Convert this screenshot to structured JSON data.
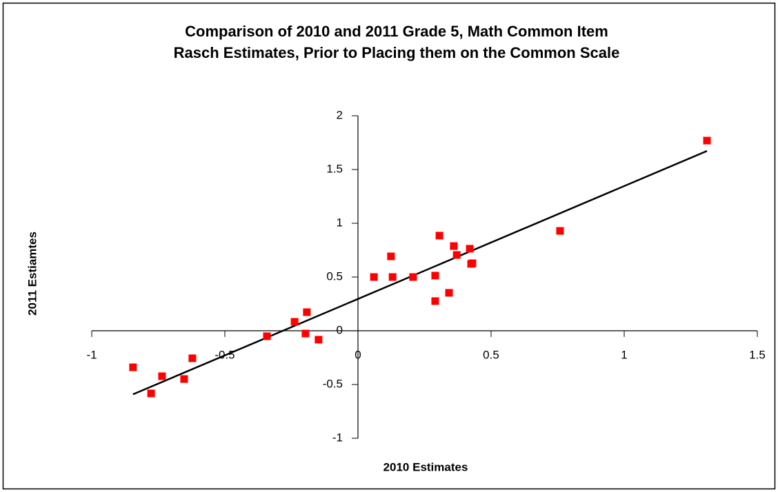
{
  "chart_data": {
    "type": "scatter",
    "title": [
      "Comparison of 2010 and 2011 Grade 5, Math Common Item",
      "Rasch Estimates, Prior to Placing them on the Common Scale"
    ],
    "x_label": "2010 Estimates",
    "y_label": "2011 Estiamtes",
    "series": [
      {
        "color": "#ff0000",
        "x": [
          -0.845,
          -0.777,
          -0.736,
          -0.653,
          -0.622,
          -0.342,
          -0.238,
          -0.192,
          -0.197,
          -0.148,
          0.06,
          0.124,
          0.13,
          0.207,
          0.29,
          0.29,
          0.306,
          0.342,
          0.36,
          0.371,
          0.42,
          0.425,
          0.43,
          0.759,
          1.311
        ],
        "values": [
          -0.34,
          -0.583,
          -0.423,
          -0.449,
          -0.256,
          -0.051,
          0.083,
          0.173,
          -0.026,
          -0.083,
          0.5,
          0.692,
          0.5,
          0.5,
          0.513,
          0.276,
          0.885,
          0.353,
          0.788,
          0.705,
          0.763,
          0.622,
          0.628,
          0.929,
          1.769
        ]
      }
    ],
    "trendline": {
      "slope": 1.05,
      "intercept": 0.296,
      "color": "#000000"
    },
    "xlim": [
      -1,
      1.5
    ],
    "xticks": [
      -1,
      -0.5,
      0,
      0.5,
      1,
      1.5
    ],
    "ylim": [
      -1,
      2
    ],
    "yticks": [
      -1,
      -0.5,
      0,
      0.5,
      1,
      1.5,
      2
    ],
    "grid": false
  }
}
